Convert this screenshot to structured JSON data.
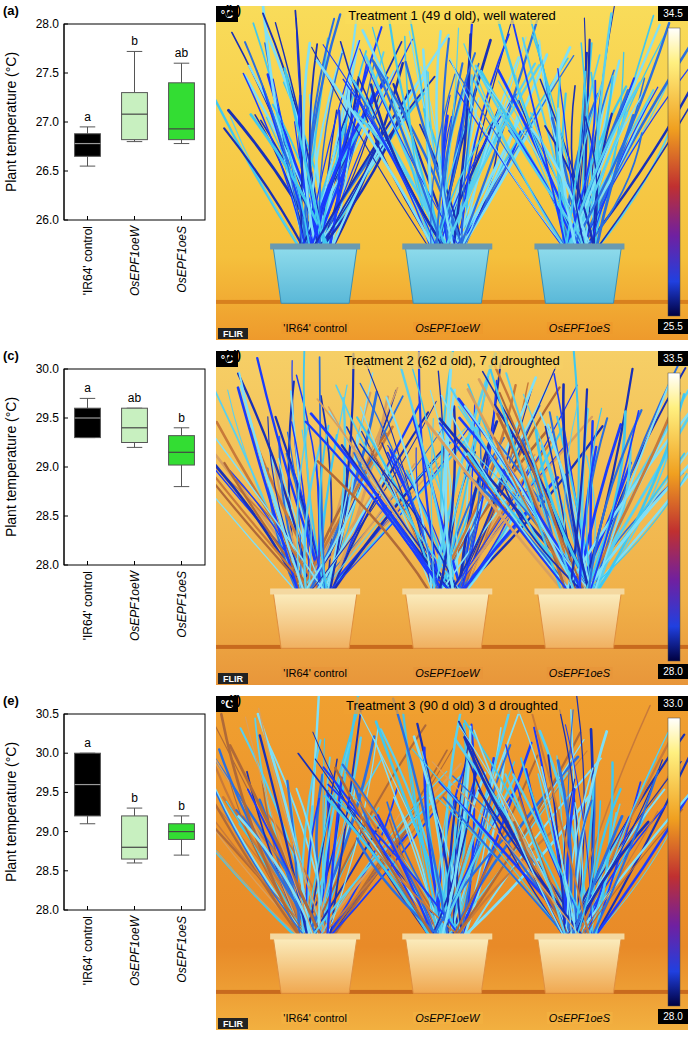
{
  "chart_data": [
    {
      "type": "box",
      "panel": "(a)",
      "y_label": "Plant temperature (°C)",
      "categories": [
        "'IR64' control",
        "OsEPF1oeW",
        "OsEPF1oeS"
      ],
      "colors": [
        "#000000",
        "#c8f0c0",
        "#33dd33"
      ],
      "ylim": [
        26,
        28
      ],
      "yticks": [
        {
          "value": 26,
          "label": "26.0"
        },
        {
          "value": 26.5,
          "label": "26.5"
        },
        {
          "value": 27,
          "label": "27.0"
        },
        {
          "value": 27.5,
          "label": "27.5"
        },
        {
          "value": 28,
          "label": "28.0"
        }
      ],
      "boxes": [
        {
          "min": 26.55,
          "q1": 26.65,
          "median": 26.78,
          "q3": 26.88,
          "max": 26.95
        },
        {
          "min": 26.8,
          "q1": 26.82,
          "median": 27.08,
          "q3": 27.3,
          "max": 27.72
        },
        {
          "min": 26.78,
          "q1": 26.82,
          "median": 26.93,
          "q3": 27.4,
          "max": 27.6
        }
      ],
      "letters": [
        "a",
        "b",
        "ab"
      ]
    },
    {
      "type": "box",
      "panel": "(c)",
      "y_label": "Plant temperature (°C)",
      "categories": [
        "'IR64' control",
        "OsEPF1oeW",
        "OsEPF1oeS"
      ],
      "colors": [
        "#000000",
        "#c8f0c0",
        "#33dd33"
      ],
      "ylim": [
        28,
        30
      ],
      "yticks": [
        {
          "value": 28,
          "label": "28.0"
        },
        {
          "value": 28.5,
          "label": "28.5"
        },
        {
          "value": 29,
          "label": "29.0"
        },
        {
          "value": 29.5,
          "label": "29.5"
        },
        {
          "value": 30,
          "label": "30.0"
        }
      ],
      "boxes": [
        {
          "min": 29.3,
          "q1": 29.3,
          "median": 29.5,
          "q3": 29.6,
          "max": 29.7
        },
        {
          "min": 29.2,
          "q1": 29.25,
          "median": 29.4,
          "q3": 29.6,
          "max": 29.6
        },
        {
          "min": 28.8,
          "q1": 29.02,
          "median": 29.15,
          "q3": 29.32,
          "max": 29.4
        }
      ],
      "letters": [
        "a",
        "ab",
        "b"
      ]
    },
    {
      "type": "box",
      "panel": "(e)",
      "y_label": "Plant temperature (°C)",
      "categories": [
        "'IR64' control",
        "OsEPF1oeW",
        "OsEPF1oeS"
      ],
      "colors": [
        "#000000",
        "#c8f0c0",
        "#33dd33"
      ],
      "ylim": [
        28,
        30.5
      ],
      "yticks": [
        {
          "value": 28,
          "label": "28.0"
        },
        {
          "value": 28.5,
          "label": "28.5"
        },
        {
          "value": 29,
          "label": "29.0"
        },
        {
          "value": 29.5,
          "label": "29.5"
        },
        {
          "value": 30,
          "label": "30.0"
        },
        {
          "value": 30.5,
          "label": "30.5"
        }
      ],
      "boxes": [
        {
          "min": 29.1,
          "q1": 29.2,
          "median": 29.6,
          "q3": 30.0,
          "max": 30.0
        },
        {
          "min": 28.6,
          "q1": 28.65,
          "median": 28.8,
          "q3": 29.2,
          "max": 29.3
        },
        {
          "min": 28.7,
          "q1": 28.9,
          "median": 29.0,
          "q3": 29.1,
          "max": 29.2
        }
      ],
      "letters": [
        "a",
        "b",
        "b"
      ]
    }
  ],
  "thermal_images": [
    {
      "panel": "(b)",
      "unit": "°C",
      "title": "Treatment 1 (49 d old), well watered",
      "scale_labels": [
        "34.5",
        "25.5"
      ],
      "labels": [
        "'IR64' control",
        "OsEPF1oeW",
        "OsEPF1oeS"
      ],
      "brand": "FLIR"
    },
    {
      "panel": "(d)",
      "unit": "°C",
      "title": "Treatment 2 (62 d old), 7 d droughted",
      "scale_labels": [
        "33.5",
        "28.0"
      ],
      "labels": [
        "'IR64' control",
        "OsEPF1oeW",
        "OsEPF1oeS"
      ],
      "brand": "FLIR"
    },
    {
      "panel": "(f)",
      "unit": "°C",
      "title": "Treatment 3 (90 d old) 3 d droughted",
      "scale_labels": [
        "33.0",
        "28.0"
      ],
      "labels": [
        "'IR64' control",
        "OsEPF1oeW",
        "OsEPF1oeS"
      ],
      "brand": "FLIR"
    }
  ]
}
